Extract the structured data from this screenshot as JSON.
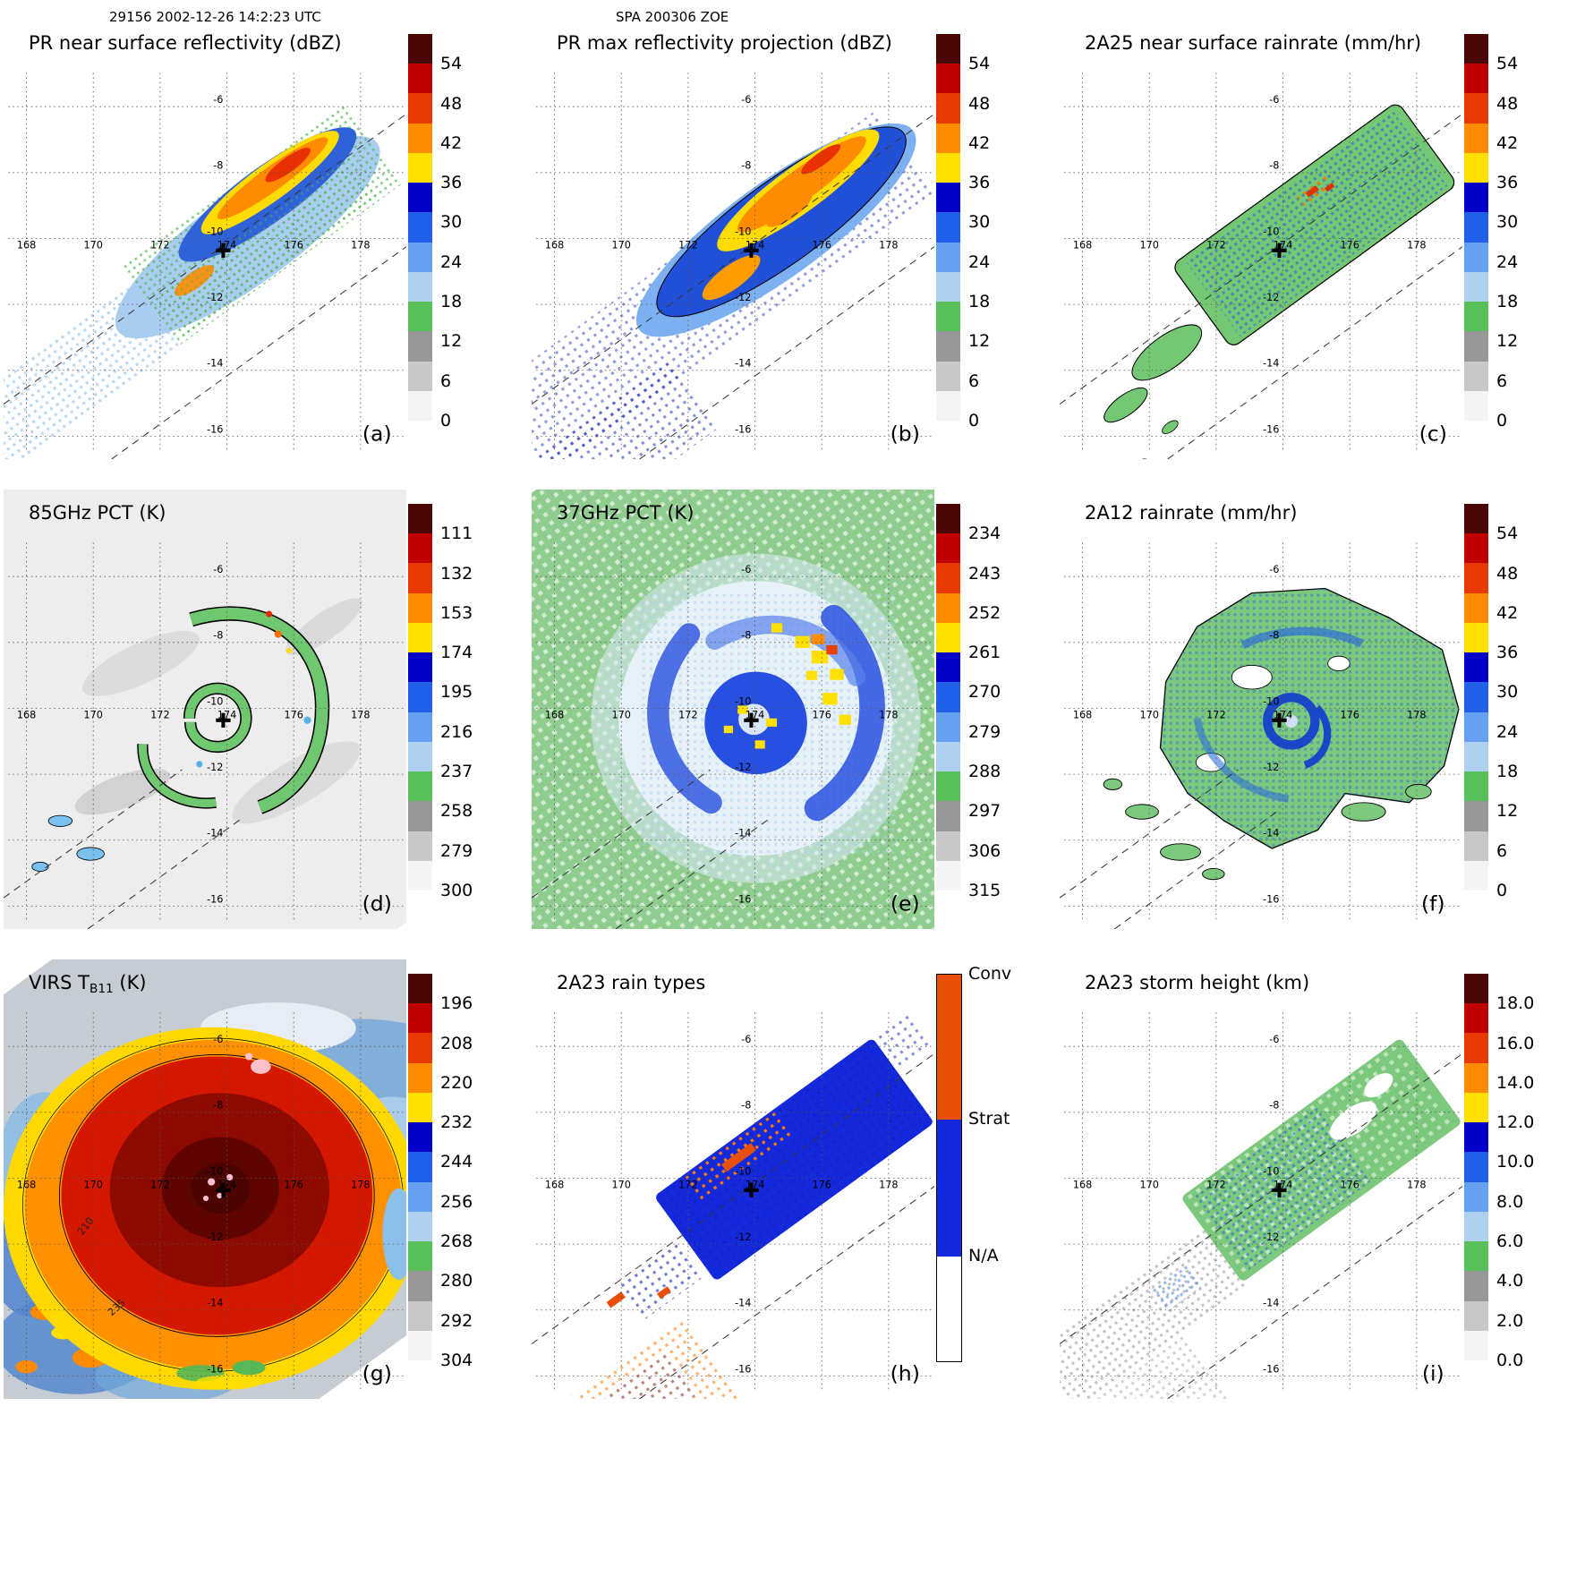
{
  "annotations": {
    "scan_info": "29156 2002-12-26 14:2:23 UTC",
    "storm_id": "SPA 200306 ZOE"
  },
  "axes": {
    "lon_labels": [
      "168",
      "170",
      "172",
      "174",
      "176",
      "178"
    ],
    "lat_labels": [
      "-6",
      "-8",
      "-10",
      "-12",
      "-14",
      "-16"
    ]
  },
  "colorscales": {
    "rainbow13": [
      "#4a0505",
      "#c00000",
      "#e83a00",
      "#ff8c00",
      "#ffe000",
      "#0000c8",
      "#2060e8",
      "#66a0f0",
      "#b0d0f0",
      "#58c058",
      "#989898",
      "#c8c8c8",
      "#f4f4f4"
    ],
    "raintype": [
      "#e8500a",
      "#1428dc",
      "#ffffff"
    ]
  },
  "panels": [
    {
      "letter": "(a)",
      "title": "PR near surface reflectivity (dBZ)",
      "colorbar_ticks": [
        "54",
        "48",
        "42",
        "36",
        "30",
        "24",
        "18",
        "12",
        "6",
        "0"
      ]
    },
    {
      "letter": "(b)",
      "title": "PR max reflectivity projection (dBZ)",
      "colorbar_ticks": [
        "54",
        "48",
        "42",
        "36",
        "30",
        "24",
        "18",
        "12",
        "6",
        "0"
      ]
    },
    {
      "letter": "(c)",
      "title": "2A25 near surface rainrate (mm/hr)",
      "colorbar_ticks": [
        "54",
        "48",
        "42",
        "36",
        "30",
        "24",
        "18",
        "12",
        "6",
        "0"
      ]
    },
    {
      "letter": "(d)",
      "title": "85GHz PCT (K)",
      "colorbar_ticks": [
        "111",
        "132",
        "153",
        "174",
        "195",
        "216",
        "237",
        "258",
        "279",
        "300"
      ]
    },
    {
      "letter": "(e)",
      "title": "37GHz PCT (K)",
      "colorbar_ticks": [
        "234",
        "243",
        "252",
        "261",
        "270",
        "279",
        "288",
        "297",
        "306",
        "315"
      ]
    },
    {
      "letter": "(f)",
      "title": "2A12 rainrate (mm/hr)",
      "colorbar_ticks": [
        "54",
        "48",
        "42",
        "36",
        "30",
        "24",
        "18",
        "12",
        "6",
        "0"
      ]
    },
    {
      "letter": "(g)",
      "title_main": "VIRS T",
      "title_sub": "B11",
      "title_unit": " (K)",
      "contour_labels": [
        "210",
        "235"
      ],
      "colorbar_ticks": [
        "196",
        "208",
        "220",
        "232",
        "244",
        "256",
        "268",
        "280",
        "292",
        "304"
      ]
    },
    {
      "letter": "(h)",
      "title": "2A23 rain types",
      "colorbar_labels": [
        "Conv",
        "Strat",
        "N/A"
      ]
    },
    {
      "letter": "(i)",
      "title": "2A23 storm height (km)",
      "colorbar_ticks": [
        "18.0",
        "16.0",
        "14.0",
        "12.0",
        "10.0",
        "8.0",
        "6.0",
        "4.0",
        "2.0",
        "0.0"
      ]
    }
  ],
  "chart_data": [
    {
      "panel": "a",
      "type": "heatmap",
      "title": "PR near surface reflectivity (dBZ)",
      "variable": "near surface radar reflectivity",
      "units": "dBZ",
      "colorbar_ticks": [
        54,
        48,
        42,
        36,
        30,
        24,
        18,
        12,
        6,
        0
      ],
      "lon_range": [
        167,
        179
      ],
      "lat_range": [
        -17,
        -5
      ],
      "storm_center": {
        "lon": 173.9,
        "lat": -10.4
      }
    },
    {
      "panel": "b",
      "type": "heatmap",
      "title": "PR max reflectivity projection (dBZ)",
      "variable": "maximum radar reflectivity projection",
      "units": "dBZ",
      "colorbar_ticks": [
        54,
        48,
        42,
        36,
        30,
        24,
        18,
        12,
        6,
        0
      ],
      "lon_range": [
        167,
        179
      ],
      "lat_range": [
        -17,
        -5
      ],
      "storm_center": {
        "lon": 173.9,
        "lat": -10.4
      }
    },
    {
      "panel": "c",
      "type": "heatmap",
      "title": "2A25 near surface rainrate (mm/hr)",
      "variable": "2A25 near surface rainrate",
      "units": "mm/hr",
      "colorbar_ticks": [
        54,
        48,
        42,
        36,
        30,
        24,
        18,
        12,
        6,
        0
      ],
      "lon_range": [
        167,
        179
      ],
      "lat_range": [
        -17,
        -5
      ],
      "storm_center": {
        "lon": 173.9,
        "lat": -10.4
      }
    },
    {
      "panel": "d",
      "type": "heatmap",
      "title": "85GHz PCT (K)",
      "variable": "85 GHz polarization corrected temperature",
      "units": "K",
      "colorbar_ticks": [
        111,
        132,
        153,
        174,
        195,
        216,
        237,
        258,
        279,
        300
      ],
      "lon_range": [
        167,
        179
      ],
      "lat_range": [
        -17,
        -5
      ],
      "storm_center": {
        "lon": 173.9,
        "lat": -10.4
      }
    },
    {
      "panel": "e",
      "type": "heatmap",
      "title": "37GHz PCT (K)",
      "variable": "37 GHz polarization corrected temperature",
      "units": "K",
      "colorbar_ticks": [
        234,
        243,
        252,
        261,
        270,
        279,
        288,
        297,
        306,
        315
      ],
      "lon_range": [
        167,
        179
      ],
      "lat_range": [
        -17,
        -5
      ],
      "storm_center": {
        "lon": 173.9,
        "lat": -10.4
      }
    },
    {
      "panel": "f",
      "type": "heatmap",
      "title": "2A12 rainrate (mm/hr)",
      "variable": "2A12 rainrate",
      "units": "mm/hr",
      "colorbar_ticks": [
        54,
        48,
        42,
        36,
        30,
        24,
        18,
        12,
        6,
        0
      ],
      "lon_range": [
        167,
        179
      ],
      "lat_range": [
        -17,
        -5
      ],
      "storm_center": {
        "lon": 173.9,
        "lat": -10.4
      }
    },
    {
      "panel": "g",
      "type": "heatmap",
      "title": "VIRS TB11 (K)",
      "variable": "VIRS 11 micron brightness temperature",
      "units": "K",
      "colorbar_ticks": [
        196,
        208,
        220,
        232,
        244,
        256,
        268,
        280,
        292,
        304
      ],
      "contour_labels": [
        210,
        235
      ],
      "lon_range": [
        167,
        179
      ],
      "lat_range": [
        -17,
        -5
      ],
      "storm_center": {
        "lon": 173.9,
        "lat": -10.4
      }
    },
    {
      "panel": "h",
      "type": "heatmap",
      "title": "2A23 rain types",
      "variable": "2A23 rain type classification",
      "categories": [
        "Conv",
        "Strat",
        "N/A"
      ],
      "lon_range": [
        167,
        179
      ],
      "lat_range": [
        -17,
        -5
      ],
      "storm_center": {
        "lon": 173.9,
        "lat": -10.4
      }
    },
    {
      "panel": "i",
      "type": "heatmap",
      "title": "2A23 storm height (km)",
      "variable": "2A23 storm height",
      "units": "km",
      "colorbar_ticks": [
        18.0,
        16.0,
        14.0,
        12.0,
        10.0,
        8.0,
        6.0,
        4.0,
        2.0,
        0.0
      ],
      "lon_range": [
        167,
        179
      ],
      "lat_range": [
        -17,
        -5
      ],
      "storm_center": {
        "lon": 173.9,
        "lat": -10.4
      }
    }
  ]
}
